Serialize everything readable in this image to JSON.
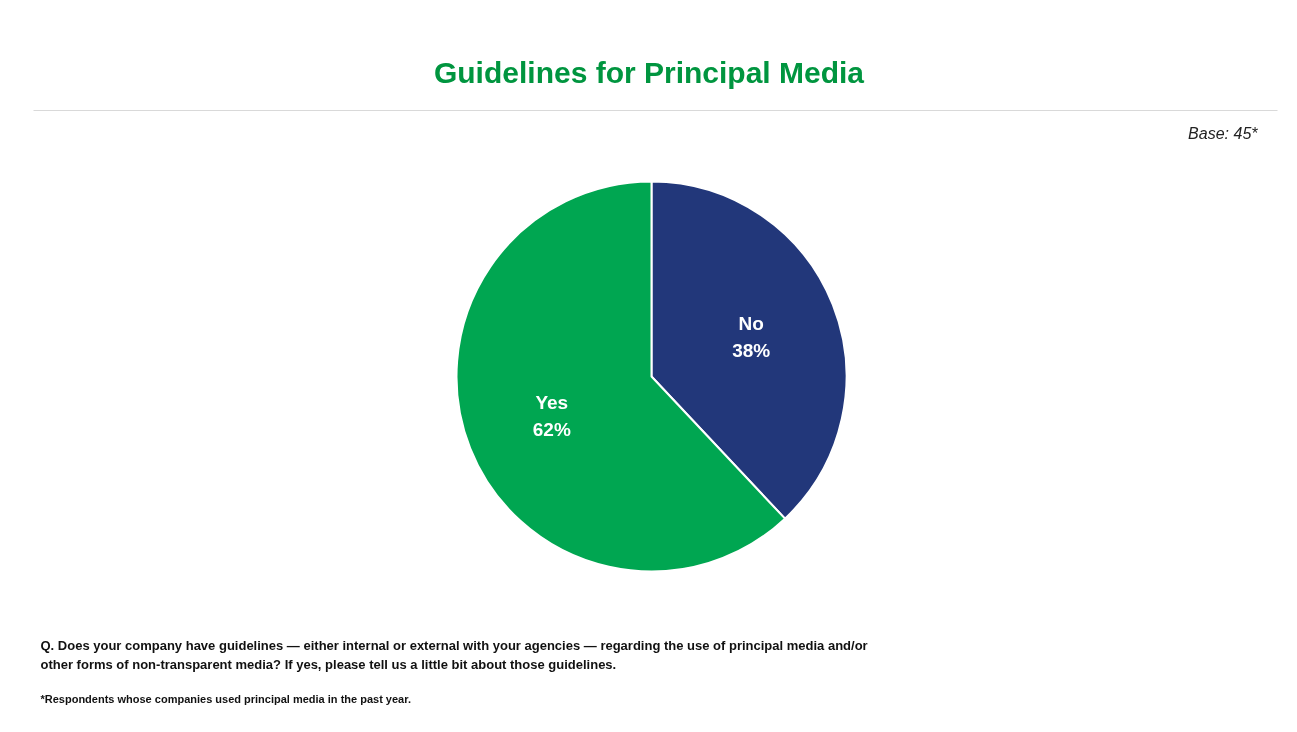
{
  "chart_data": {
    "type": "pie",
    "title": "Guidelines for Principal Media",
    "categories": [
      "No",
      "Yes"
    ],
    "values": [
      38,
      62
    ],
    "colors": [
      "#22377a",
      "#00a651"
    ],
    "value_labels": [
      "38%",
      "62%"
    ],
    "annotations": [
      "Base: 45*",
      "Q. Does your company have guidelines — either internal or external with your agencies — regarding the use of principal media and/or other forms of non-transparent media? If yes, please tell us a little bit about those guidelines.",
      "*Respondents whose companies used principal media in the past year."
    ]
  }
}
